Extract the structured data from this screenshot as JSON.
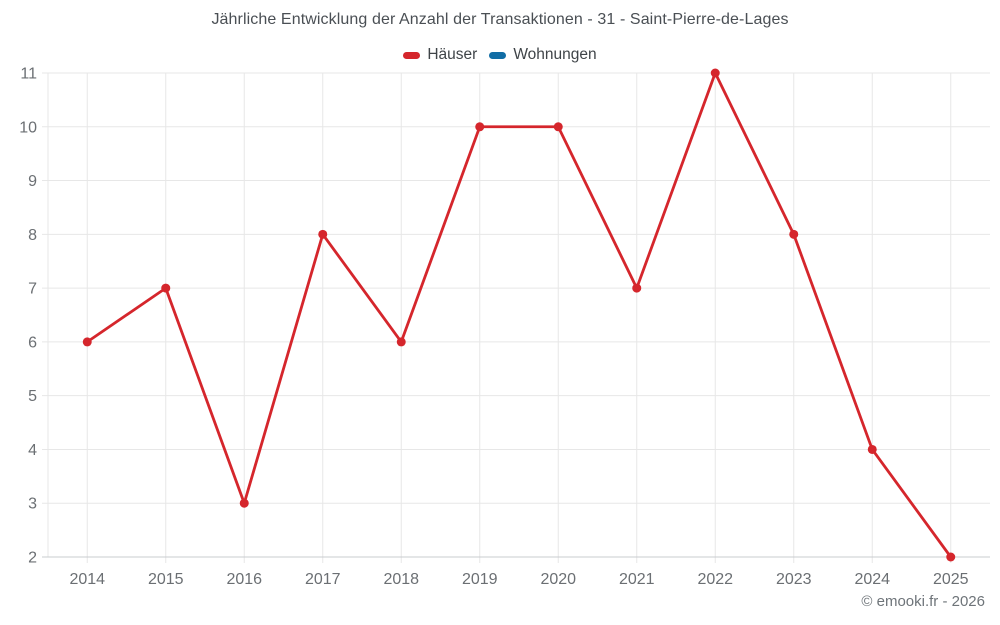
{
  "chart_data": {
    "type": "line",
    "title": "Jährliche Entwicklung der Anzahl der Transaktionen - 31 - Saint-Pierre-de-Lages",
    "categories": [
      "2014",
      "2015",
      "2016",
      "2017",
      "2018",
      "2019",
      "2020",
      "2021",
      "2022",
      "2023",
      "2024",
      "2025"
    ],
    "series": [
      {
        "name": "Häuser",
        "color": "#d5262c",
        "values": [
          6,
          7,
          3,
          8,
          6,
          10,
          10,
          7,
          11,
          8,
          4,
          2
        ]
      },
      {
        "name": "Wohnungen",
        "color": "#116da5",
        "values": []
      }
    ],
    "xlabel": "",
    "ylabel": "",
    "ylim": [
      2,
      11
    ],
    "yticks": [
      2,
      3,
      4,
      5,
      6,
      7,
      8,
      9,
      10,
      11
    ],
    "grid": true,
    "legend_position": "top"
  },
  "legend": {
    "items": [
      {
        "label": "Häuser",
        "color": "#d5262c"
      },
      {
        "label": "Wohnungen",
        "color": "#116da5"
      }
    ]
  },
  "footer": {
    "copyright": "© emooki.fr - 2026"
  },
  "colors": {
    "background": "#ffffff",
    "grid": "#e7e7e7",
    "axis_line": "#c9cccf",
    "axis_label": "#6b6f73",
    "title_text": "#4a4f54",
    "legend_text": "#3f4448",
    "copyright_text": "#6e7479"
  }
}
